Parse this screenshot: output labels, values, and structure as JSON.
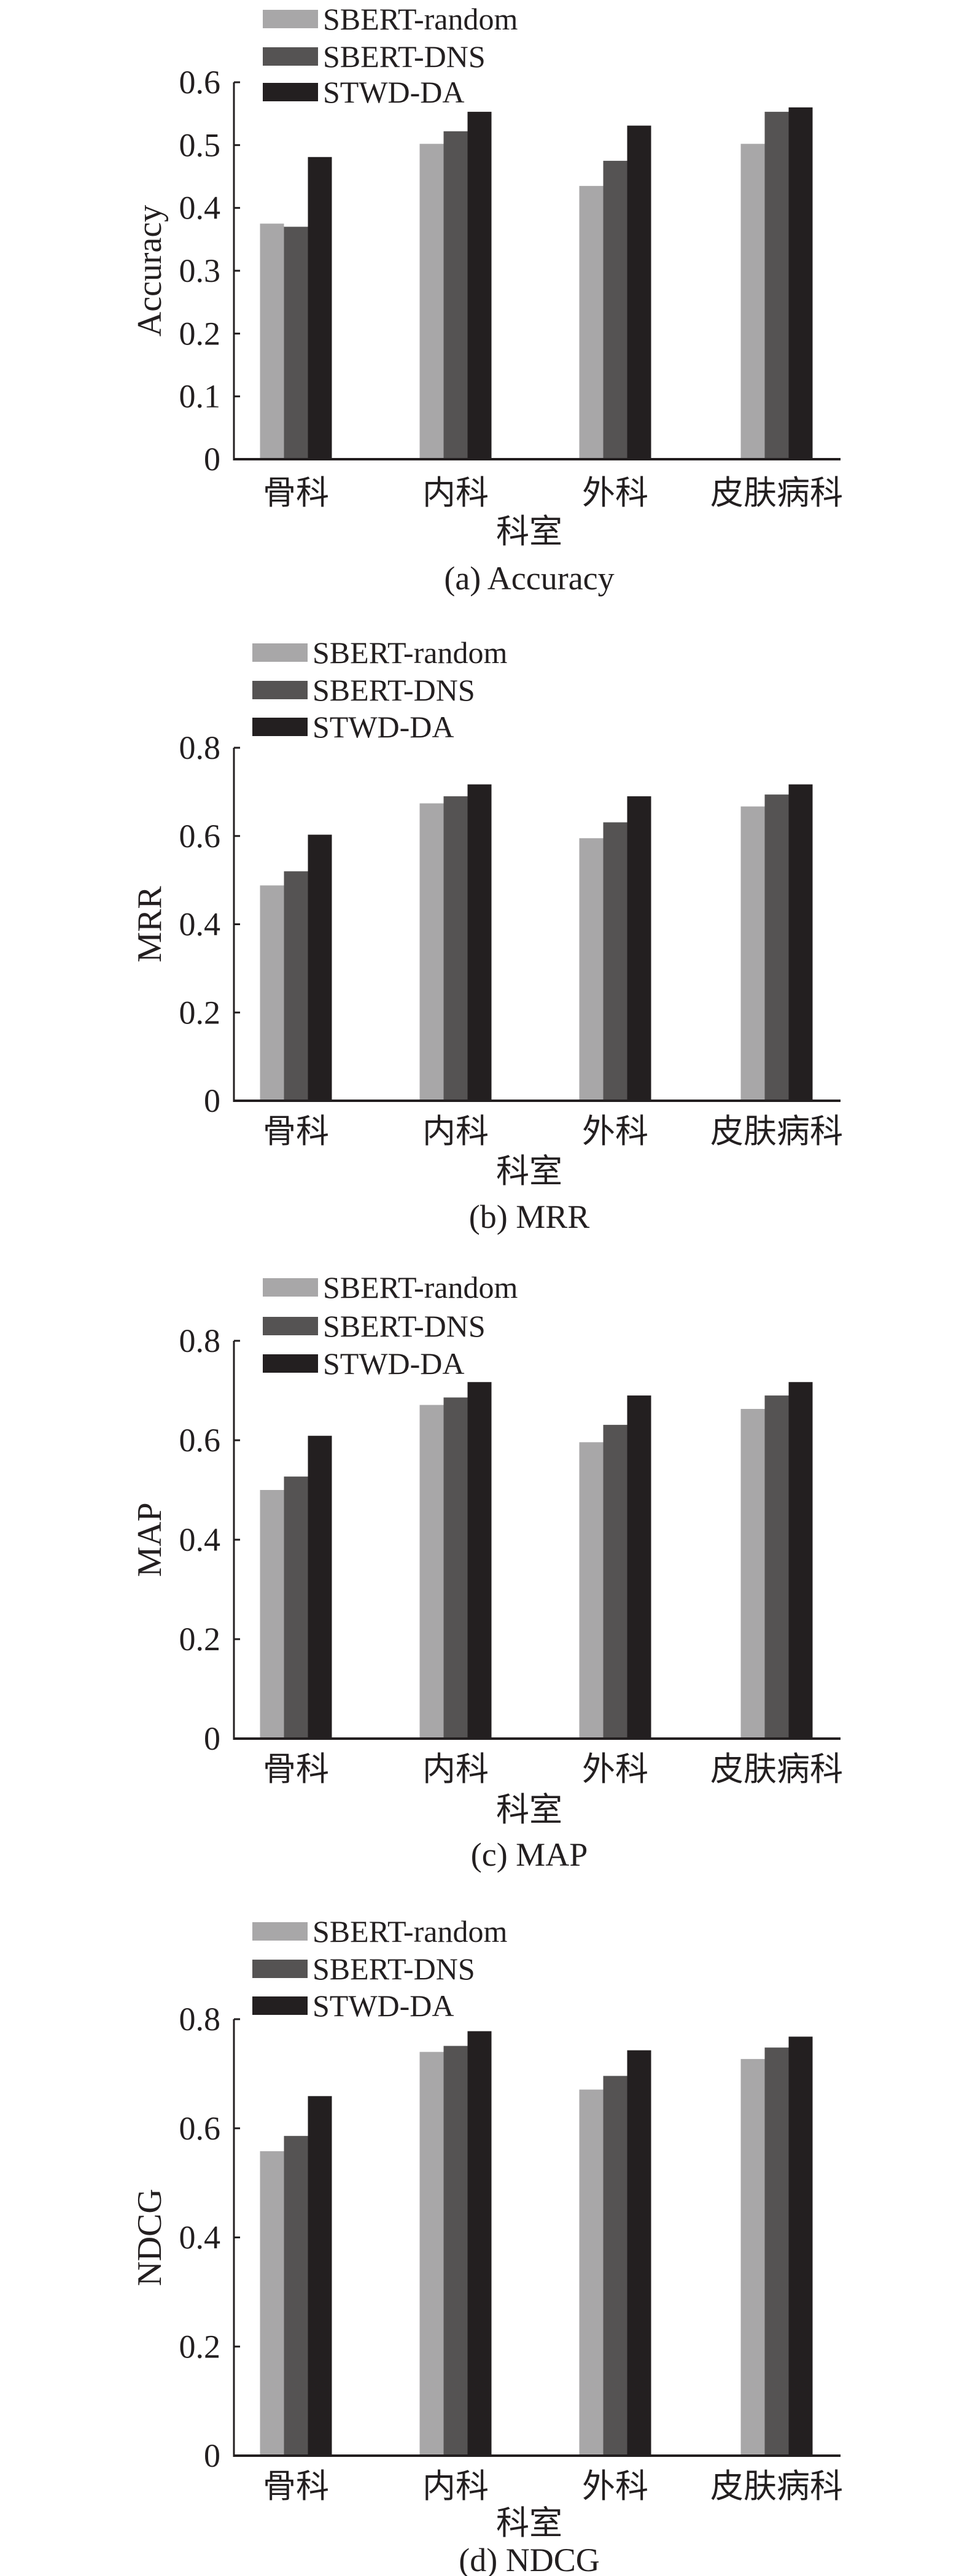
{
  "colors": {
    "SBERT-random": "#a8a7a8",
    "SBERT-DNS": "#555353",
    "STWD-DA": "#231f20"
  },
  "chart_data": [
    {
      "type": "bar",
      "caption": "(a) Accuracy",
      "xlabel": "科室",
      "ylabel": "Accuracy",
      "categories": [
        "骨科",
        "内科",
        "外科",
        "皮肤病科"
      ],
      "ylim": [
        0,
        0.6
      ],
      "yticks": [
        "0",
        "0.1",
        "0.2",
        "0.3",
        "0.4",
        "0.5",
        "0.6"
      ],
      "legend_position": "top-left",
      "grid": false,
      "series": [
        {
          "name": "SBERT-random",
          "values": [
            0.375,
            0.502,
            0.435,
            0.502
          ]
        },
        {
          "name": "SBERT-DNS",
          "values": [
            0.37,
            0.522,
            0.475,
            0.553
          ]
        },
        {
          "name": "STWD-DA",
          "values": [
            0.481,
            0.553,
            0.531,
            0.56
          ]
        }
      ]
    },
    {
      "type": "bar",
      "caption": "(b) MRR",
      "xlabel": "科室",
      "ylabel": "MRR",
      "categories": [
        "骨科",
        "内科",
        "外科",
        "皮肤病科"
      ],
      "ylim": [
        0,
        0.8
      ],
      "yticks": [
        "0",
        "0.2",
        "0.4",
        "0.6",
        "0.8"
      ],
      "legend_position": "top-left",
      "grid": false,
      "series": [
        {
          "name": "SBERT-random",
          "values": [
            0.488,
            0.674,
            0.595,
            0.667
          ]
        },
        {
          "name": "SBERT-DNS",
          "values": [
            0.52,
            0.69,
            0.631,
            0.694
          ]
        },
        {
          "name": "STWD-DA",
          "values": [
            0.603,
            0.717,
            0.69,
            0.717
          ]
        }
      ]
    },
    {
      "type": "bar",
      "caption": "(c) MAP",
      "xlabel": "科室",
      "ylabel": "MAP",
      "categories": [
        "骨科",
        "内科",
        "外科",
        "皮肤病科"
      ],
      "ylim": [
        0,
        0.8
      ],
      "yticks": [
        "0",
        "0.2",
        "0.4",
        "0.6",
        "0.8"
      ],
      "legend_position": "top-left",
      "grid": false,
      "series": [
        {
          "name": "SBERT-random",
          "values": [
            0.5,
            0.671,
            0.596,
            0.663
          ]
        },
        {
          "name": "SBERT-DNS",
          "values": [
            0.527,
            0.686,
            0.631,
            0.69
          ]
        },
        {
          "name": "STWD-DA",
          "values": [
            0.609,
            0.717,
            0.69,
            0.717
          ]
        }
      ]
    },
    {
      "type": "bar",
      "caption": "(d) NDCG",
      "xlabel": "科室",
      "ylabel": "NDCG",
      "categories": [
        "骨科",
        "内科",
        "外科",
        "皮肤病科"
      ],
      "ylim": [
        0,
        0.8
      ],
      "yticks": [
        "0",
        "0.2",
        "0.4",
        "0.6",
        "0.8"
      ],
      "legend_position": "top-left",
      "grid": false,
      "series": [
        {
          "name": "SBERT-random",
          "values": [
            0.558,
            0.74,
            0.671,
            0.727
          ]
        },
        {
          "name": "SBERT-DNS",
          "values": [
            0.586,
            0.751,
            0.696,
            0.748
          ]
        },
        {
          "name": "STWD-DA",
          "values": [
            0.659,
            0.778,
            0.743,
            0.768
          ]
        }
      ]
    }
  ]
}
